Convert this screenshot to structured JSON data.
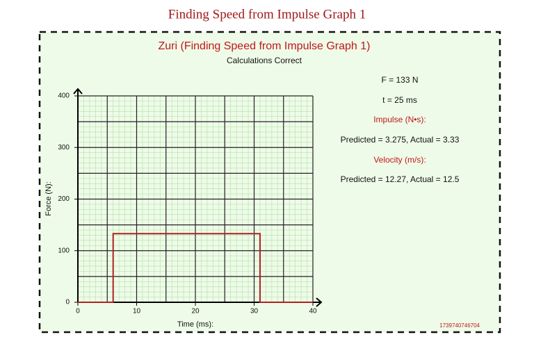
{
  "page_title": "Finding Speed from Impulse Graph 1",
  "chart_data": {
    "type": "line",
    "title": "Zuri (Finding Speed from Impulse Graph 1)",
    "subtitle": "Calculations Correct",
    "x": [
      0,
      6,
      6,
      31,
      31,
      40
    ],
    "values": [
      0,
      0,
      133,
      133,
      0,
      0
    ],
    "color": "#b02020",
    "xlim": [
      0,
      40
    ],
    "xticks": [
      0,
      10,
      20,
      30,
      40
    ],
    "ylim": [
      0,
      400
    ],
    "yticks": [
      0,
      100,
      200,
      300,
      400
    ],
    "xlabel": "Time (ms):",
    "ylabel": "Force (N):",
    "grid": {
      "major_x": 5,
      "major_y": 50,
      "minor_x": 1,
      "minor_y": 10
    },
    "annotations": [
      "F = 133 N",
      "t = 25 ms",
      "Impulse (N•s):",
      "Predicted = 3.275, Actual = 3.33",
      "Velocity (m/s):",
      "Predicted = 12.27, Actual = 12.5"
    ],
    "id_label": "1739740746704"
  }
}
